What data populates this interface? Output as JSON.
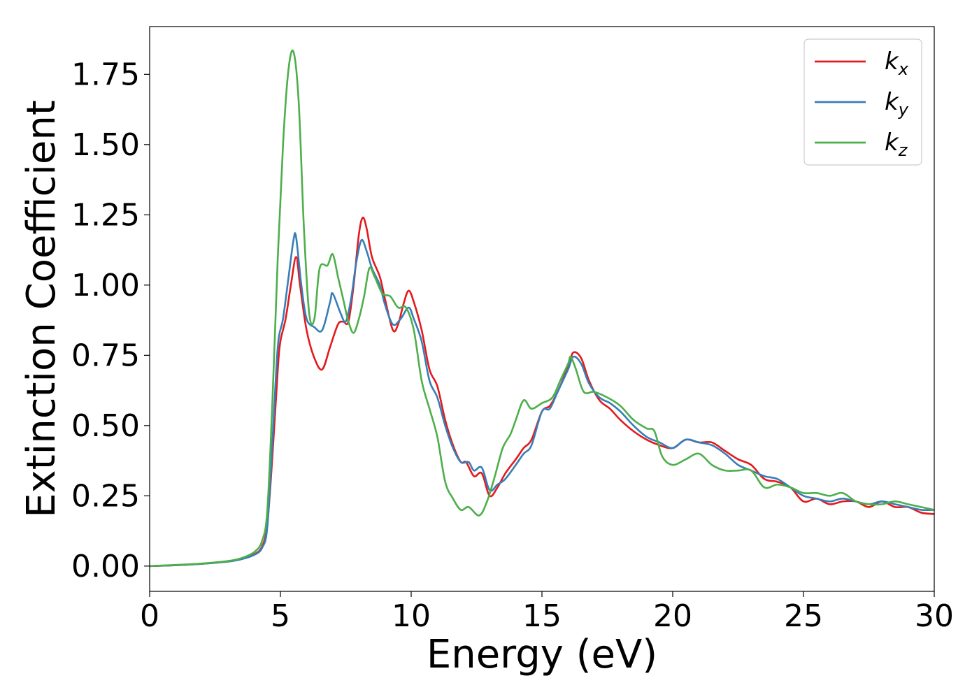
{
  "chart_data": {
    "type": "line",
    "xlabel": "Energy (eV)",
    "ylabel": "Extinction Coefficient",
    "xlim": [
      0,
      30
    ],
    "ylim": [
      -0.09,
      1.92
    ],
    "xticks": [
      0,
      5,
      10,
      15,
      20,
      25,
      30
    ],
    "yticks": [
      0.0,
      0.25,
      0.5,
      0.75,
      1.0,
      1.25,
      1.5,
      1.75
    ],
    "xtick_labels": [
      "0",
      "5",
      "10",
      "15",
      "20",
      "25",
      "30"
    ],
    "ytick_labels": [
      "0.00",
      "0.25",
      "0.50",
      "0.75",
      "1.00",
      "1.25",
      "1.50",
      "1.75"
    ],
    "grid": false,
    "legend_position": "top-right",
    "series": [
      {
        "name": "k_x",
        "label_main": "k",
        "label_sub": "x",
        "color": "#e41a1c",
        "points": [
          [
            0,
            0
          ],
          [
            1,
            0.003
          ],
          [
            2,
            0.008
          ],
          [
            3,
            0.016
          ],
          [
            3.5,
            0.025
          ],
          [
            4,
            0.042
          ],
          [
            4.3,
            0.07
          ],
          [
            4.5,
            0.15
          ],
          [
            4.7,
            0.4
          ],
          [
            4.9,
            0.7
          ],
          [
            5.0,
            0.8
          ],
          [
            5.2,
            0.88
          ],
          [
            5.4,
            1.0
          ],
          [
            5.6,
            1.1
          ],
          [
            5.75,
            1.0
          ],
          [
            6.0,
            0.84
          ],
          [
            6.3,
            0.74
          ],
          [
            6.6,
            0.7
          ],
          [
            6.9,
            0.78
          ],
          [
            7.2,
            0.86
          ],
          [
            7.4,
            0.87
          ],
          [
            7.6,
            0.87
          ],
          [
            7.8,
            1.0
          ],
          [
            8.0,
            1.18
          ],
          [
            8.15,
            1.24
          ],
          [
            8.3,
            1.2
          ],
          [
            8.5,
            1.1
          ],
          [
            8.8,
            1.03
          ],
          [
            9.0,
            0.95
          ],
          [
            9.3,
            0.84
          ],
          [
            9.5,
            0.86
          ],
          [
            9.7,
            0.93
          ],
          [
            9.9,
            0.98
          ],
          [
            10.1,
            0.94
          ],
          [
            10.4,
            0.84
          ],
          [
            10.7,
            0.7
          ],
          [
            11.0,
            0.64
          ],
          [
            11.3,
            0.52
          ],
          [
            11.6,
            0.43
          ],
          [
            11.9,
            0.37
          ],
          [
            12.1,
            0.37
          ],
          [
            12.4,
            0.32
          ],
          [
            12.7,
            0.33
          ],
          [
            13.0,
            0.25
          ],
          [
            13.3,
            0.28
          ],
          [
            13.6,
            0.33
          ],
          [
            14.0,
            0.38
          ],
          [
            14.3,
            0.42
          ],
          [
            14.6,
            0.45
          ],
          [
            15.0,
            0.55
          ],
          [
            15.3,
            0.57
          ],
          [
            15.6,
            0.62
          ],
          [
            16.0,
            0.71
          ],
          [
            16.2,
            0.76
          ],
          [
            16.5,
            0.74
          ],
          [
            16.8,
            0.66
          ],
          [
            17.2,
            0.59
          ],
          [
            17.6,
            0.56
          ],
          [
            18.0,
            0.52
          ],
          [
            18.5,
            0.48
          ],
          [
            19.0,
            0.45
          ],
          [
            19.5,
            0.43
          ],
          [
            20.0,
            0.42
          ],
          [
            20.5,
            0.45
          ],
          [
            21.0,
            0.44
          ],
          [
            21.5,
            0.44
          ],
          [
            22.0,
            0.41
          ],
          [
            22.5,
            0.38
          ],
          [
            23.0,
            0.36
          ],
          [
            23.5,
            0.31
          ],
          [
            24.0,
            0.3
          ],
          [
            24.5,
            0.28
          ],
          [
            25.0,
            0.23
          ],
          [
            25.5,
            0.24
          ],
          [
            26.0,
            0.22
          ],
          [
            26.5,
            0.23
          ],
          [
            27.0,
            0.23
          ],
          [
            27.5,
            0.21
          ],
          [
            28.0,
            0.23
          ],
          [
            28.5,
            0.21
          ],
          [
            29.0,
            0.21
          ],
          [
            29.5,
            0.19
          ],
          [
            30,
            0.185
          ]
        ]
      },
      {
        "name": "k_y",
        "label_main": "k",
        "label_sub": "y",
        "color": "#377eb8",
        "points": [
          [
            0,
            0
          ],
          [
            1,
            0.003
          ],
          [
            2,
            0.008
          ],
          [
            3,
            0.016
          ],
          [
            3.5,
            0.024
          ],
          [
            4,
            0.04
          ],
          [
            4.3,
            0.065
          ],
          [
            4.5,
            0.14
          ],
          [
            4.7,
            0.45
          ],
          [
            4.9,
            0.78
          ],
          [
            5.1,
            0.88
          ],
          [
            5.3,
            1.02
          ],
          [
            5.5,
            1.16
          ],
          [
            5.6,
            1.17
          ],
          [
            5.8,
            1.0
          ],
          [
            6.0,
            0.88
          ],
          [
            6.3,
            0.85
          ],
          [
            6.6,
            0.84
          ],
          [
            6.9,
            0.94
          ],
          [
            7.0,
            0.97
          ],
          [
            7.3,
            0.9
          ],
          [
            7.5,
            0.87
          ],
          [
            7.7,
            0.95
          ],
          [
            7.9,
            1.08
          ],
          [
            8.1,
            1.16
          ],
          [
            8.3,
            1.12
          ],
          [
            8.5,
            1.06
          ],
          [
            8.8,
            1.0
          ],
          [
            9.0,
            0.93
          ],
          [
            9.3,
            0.86
          ],
          [
            9.6,
            0.88
          ],
          [
            9.9,
            0.92
          ],
          [
            10.1,
            0.88
          ],
          [
            10.4,
            0.8
          ],
          [
            10.7,
            0.66
          ],
          [
            11.0,
            0.6
          ],
          [
            11.3,
            0.5
          ],
          [
            11.6,
            0.42
          ],
          [
            11.9,
            0.37
          ],
          [
            12.2,
            0.37
          ],
          [
            12.4,
            0.34
          ],
          [
            12.7,
            0.35
          ],
          [
            13.0,
            0.27
          ],
          [
            13.3,
            0.29
          ],
          [
            13.6,
            0.31
          ],
          [
            14.0,
            0.36
          ],
          [
            14.3,
            0.4
          ],
          [
            14.6,
            0.43
          ],
          [
            15.0,
            0.55
          ],
          [
            15.3,
            0.56
          ],
          [
            15.6,
            0.62
          ],
          [
            16.0,
            0.7
          ],
          [
            16.2,
            0.745
          ],
          [
            16.5,
            0.72
          ],
          [
            16.8,
            0.65
          ],
          [
            17.2,
            0.6
          ],
          [
            17.6,
            0.58
          ],
          [
            18.0,
            0.55
          ],
          [
            18.5,
            0.5
          ],
          [
            19.0,
            0.46
          ],
          [
            19.5,
            0.44
          ],
          [
            20.0,
            0.42
          ],
          [
            20.5,
            0.45
          ],
          [
            21.0,
            0.44
          ],
          [
            21.5,
            0.43
          ],
          [
            22.0,
            0.4
          ],
          [
            22.5,
            0.36
          ],
          [
            23.0,
            0.34
          ],
          [
            23.5,
            0.32
          ],
          [
            24.0,
            0.31
          ],
          [
            24.5,
            0.28
          ],
          [
            25.0,
            0.25
          ],
          [
            25.5,
            0.24
          ],
          [
            26.0,
            0.23
          ],
          [
            26.5,
            0.24
          ],
          [
            27.0,
            0.23
          ],
          [
            27.5,
            0.22
          ],
          [
            28.0,
            0.23
          ],
          [
            28.5,
            0.22
          ],
          [
            29.0,
            0.21
          ],
          [
            29.5,
            0.2
          ],
          [
            30,
            0.2
          ]
        ]
      },
      {
        "name": "k_z",
        "label_main": "k",
        "label_sub": "z",
        "color": "#4daf4a",
        "points": [
          [
            0,
            0
          ],
          [
            1,
            0.004
          ],
          [
            2,
            0.009
          ],
          [
            3,
            0.018
          ],
          [
            3.5,
            0.028
          ],
          [
            4,
            0.05
          ],
          [
            4.3,
            0.09
          ],
          [
            4.5,
            0.2
          ],
          [
            4.7,
            0.6
          ],
          [
            4.9,
            1.1
          ],
          [
            5.1,
            1.5
          ],
          [
            5.3,
            1.76
          ],
          [
            5.5,
            1.83
          ],
          [
            5.7,
            1.65
          ],
          [
            5.9,
            1.2
          ],
          [
            6.1,
            0.9
          ],
          [
            6.3,
            0.88
          ],
          [
            6.5,
            1.06
          ],
          [
            6.8,
            1.07
          ],
          [
            7.0,
            1.11
          ],
          [
            7.2,
            1.03
          ],
          [
            7.4,
            0.95
          ],
          [
            7.6,
            0.87
          ],
          [
            7.8,
            0.83
          ],
          [
            8.0,
            0.88
          ],
          [
            8.2,
            0.96
          ],
          [
            8.4,
            1.06
          ],
          [
            8.6,
            1.03
          ],
          [
            8.9,
            0.97
          ],
          [
            9.2,
            0.96
          ],
          [
            9.5,
            0.92
          ],
          [
            9.8,
            0.92
          ],
          [
            10.1,
            0.84
          ],
          [
            10.4,
            0.66
          ],
          [
            10.7,
            0.56
          ],
          [
            11.0,
            0.46
          ],
          [
            11.3,
            0.3
          ],
          [
            11.6,
            0.24
          ],
          [
            11.9,
            0.2
          ],
          [
            12.2,
            0.21
          ],
          [
            12.6,
            0.18
          ],
          [
            12.9,
            0.23
          ],
          [
            13.2,
            0.32
          ],
          [
            13.5,
            0.42
          ],
          [
            13.8,
            0.47
          ],
          [
            14.0,
            0.52
          ],
          [
            14.3,
            0.59
          ],
          [
            14.6,
            0.56
          ],
          [
            15.0,
            0.58
          ],
          [
            15.4,
            0.6
          ],
          [
            15.7,
            0.66
          ],
          [
            16.0,
            0.72
          ],
          [
            16.1,
            0.745
          ],
          [
            16.3,
            0.7
          ],
          [
            16.6,
            0.62
          ],
          [
            17.0,
            0.62
          ],
          [
            17.5,
            0.6
          ],
          [
            18.0,
            0.57
          ],
          [
            18.5,
            0.52
          ],
          [
            19.0,
            0.49
          ],
          [
            19.3,
            0.48
          ],
          [
            19.6,
            0.39
          ],
          [
            20.0,
            0.36
          ],
          [
            20.5,
            0.38
          ],
          [
            21.0,
            0.4
          ],
          [
            21.5,
            0.36
          ],
          [
            22.0,
            0.34
          ],
          [
            22.5,
            0.34
          ],
          [
            23.0,
            0.34
          ],
          [
            23.5,
            0.28
          ],
          [
            24.0,
            0.29
          ],
          [
            24.5,
            0.28
          ],
          [
            25.0,
            0.26
          ],
          [
            25.5,
            0.26
          ],
          [
            26.0,
            0.25
          ],
          [
            26.5,
            0.26
          ],
          [
            27.0,
            0.23
          ],
          [
            27.5,
            0.22
          ],
          [
            28.0,
            0.22
          ],
          [
            28.5,
            0.23
          ],
          [
            29.0,
            0.22
          ],
          [
            29.5,
            0.21
          ],
          [
            30,
            0.2
          ]
        ]
      }
    ]
  }
}
